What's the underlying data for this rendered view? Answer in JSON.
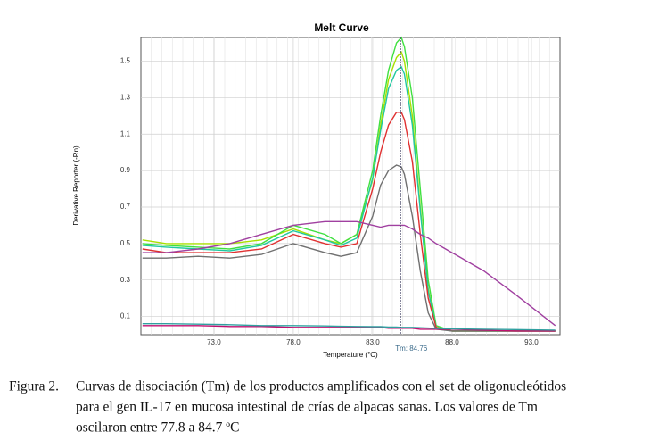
{
  "chart_data": {
    "type": "line",
    "title": "Melt Curve",
    "x_label": "Temperature (°C)",
    "y_label": "Derivative Reporter (-Rn)",
    "x": [
      68.5,
      70,
      72,
      74,
      76,
      78,
      80,
      81,
      82,
      83,
      83.5,
      84,
      84.5,
      84.8,
      85,
      85.5,
      86,
      86.5,
      87,
      88,
      90,
      92,
      94.5
    ],
    "series": [
      {
        "color": "#a8e000",
        "values": [
          0.52,
          0.5,
          0.5,
          0.5,
          0.52,
          0.58,
          0.52,
          0.5,
          0.55,
          0.85,
          1.15,
          1.4,
          1.52,
          1.55,
          1.5,
          1.2,
          0.7,
          0.25,
          0.04,
          0.02,
          0.02,
          0.02,
          0.02
        ]
      },
      {
        "color": "#40e040",
        "values": [
          0.5,
          0.49,
          0.48,
          0.47,
          0.5,
          0.6,
          0.55,
          0.5,
          0.55,
          0.9,
          1.2,
          1.45,
          1.6,
          1.63,
          1.58,
          1.3,
          0.8,
          0.3,
          0.05,
          0.02,
          0.02,
          0.02,
          0.02
        ]
      },
      {
        "color": "#20c8a0",
        "values": [
          0.49,
          0.48,
          0.47,
          0.46,
          0.49,
          0.57,
          0.52,
          0.49,
          0.53,
          0.86,
          1.12,
          1.35,
          1.45,
          1.47,
          1.43,
          1.15,
          0.68,
          0.24,
          0.04,
          0.02,
          0.02,
          0.02,
          0.02
        ]
      },
      {
        "color": "#e03030",
        "values": [
          0.47,
          0.45,
          0.45,
          0.45,
          0.47,
          0.55,
          0.5,
          0.48,
          0.5,
          0.8,
          1.0,
          1.15,
          1.22,
          1.22,
          1.18,
          0.95,
          0.55,
          0.2,
          0.04,
          0.02,
          0.02,
          0.02,
          0.02
        ]
      },
      {
        "color": "#707070",
        "values": [
          0.42,
          0.42,
          0.43,
          0.42,
          0.44,
          0.5,
          0.45,
          0.43,
          0.45,
          0.65,
          0.82,
          0.9,
          0.93,
          0.92,
          0.88,
          0.65,
          0.35,
          0.12,
          0.03,
          0.02,
          0.02,
          0.02,
          0.02
        ]
      },
      {
        "color": "#a040a0",
        "values": [
          0.45,
          0.45,
          0.47,
          0.5,
          0.55,
          0.6,
          0.62,
          0.62,
          0.62,
          0.6,
          0.59,
          0.6,
          0.6,
          0.6,
          0.6,
          0.58,
          0.55,
          0.53,
          0.5,
          0.45,
          0.35,
          0.22,
          0.05
        ]
      },
      {
        "color": "#c01070",
        "values": [
          0.05,
          0.05,
          0.05,
          0.045,
          0.045,
          0.04,
          0.04,
          0.04,
          0.04,
          0.04,
          0.04,
          0.035,
          0.035,
          0.035,
          0.035,
          0.035,
          0.03,
          0.03,
          0.03,
          0.03,
          0.025,
          0.02,
          0.02
        ]
      },
      {
        "color": "#30a0a0",
        "values": [
          0.06,
          0.06,
          0.058,
          0.055,
          0.05,
          0.05,
          0.048,
          0.046,
          0.045,
          0.044,
          0.044,
          0.042,
          0.042,
          0.04,
          0.04,
          0.04,
          0.038,
          0.036,
          0.034,
          0.032,
          0.03,
          0.028,
          0.025
        ]
      }
    ],
    "xlim": [
      68.4,
      94.8
    ],
    "ylim": [
      0,
      1.63
    ],
    "xticks": [
      {
        "value": 73,
        "label": "73.0"
      },
      {
        "value": 78,
        "label": "78.0"
      },
      {
        "value": 83,
        "label": "83.0"
      },
      {
        "value": 88,
        "label": "88.0"
      },
      {
        "value": 93,
        "label": "93.0"
      }
    ],
    "yticks": [
      0.1,
      0.3,
      0.5,
      0.7,
      0.9,
      1.1,
      1.3,
      1.5
    ],
    "grid": true,
    "annotation": {
      "label": "Tm: 84.76",
      "x": 84.76
    }
  },
  "caption": {
    "label": "Figura 2.",
    "lines": [
      "Curvas de disociación (Tm) de los productos amplificados con el set de oligonucleótidos",
      "para el gen IL-17 en mucosa intestinal de crías de alpacas sanas. Los valores de Tm",
      "oscilaron entre 77.8 a 84.7 ºC"
    ]
  }
}
